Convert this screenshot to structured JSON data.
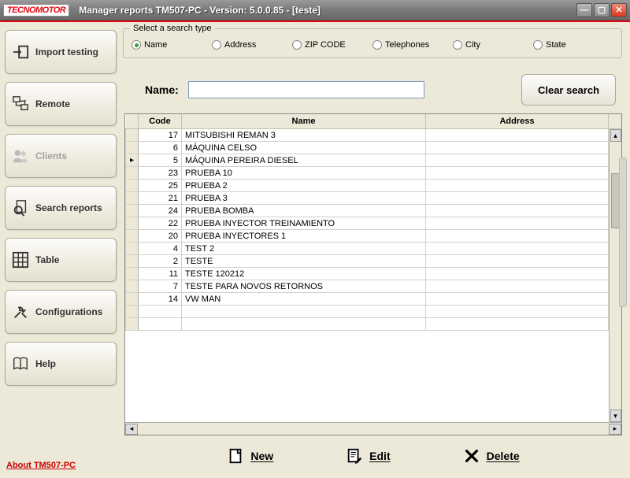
{
  "window": {
    "logo_text": "TECNOMOTOR",
    "title": "Manager reports TM507-PC - Version: 5.0.0.85 - [teste]"
  },
  "sidebar": {
    "items": [
      {
        "label": "Import testing",
        "icon": "arrow-into-box"
      },
      {
        "label": "Remote",
        "icon": "remote-pc"
      },
      {
        "label": "Clients",
        "icon": "people",
        "disabled": true
      },
      {
        "label": "Search reports",
        "icon": "search-reports"
      },
      {
        "label": "Table",
        "icon": "grid"
      },
      {
        "label": "Configurations",
        "icon": "tools"
      },
      {
        "label": "Help",
        "icon": "book"
      }
    ],
    "about_label": "About TM507-PC"
  },
  "search": {
    "group_label": "Select a search type",
    "options": [
      {
        "label": "Name",
        "checked": true
      },
      {
        "label": "Address",
        "checked": false
      },
      {
        "label": "ZIP CODE",
        "checked": false
      },
      {
        "label": "Telephones",
        "checked": false
      },
      {
        "label": "City",
        "checked": false
      },
      {
        "label": "State",
        "checked": false
      }
    ],
    "field_label": "Name:",
    "field_value": "",
    "clear_label": "Clear search"
  },
  "table": {
    "columns": [
      "Code",
      "Name",
      "Address"
    ],
    "rows": [
      {
        "code": 17,
        "name": "MITSUBISHI REMAN 3",
        "address": ""
      },
      {
        "code": 6,
        "name": "MÁQUINA CELSO",
        "address": ""
      },
      {
        "code": 5,
        "name": "MÁQUINA PEREIRA DIESEL",
        "address": "",
        "current": true
      },
      {
        "code": 23,
        "name": "PRUEBA 10",
        "address": ""
      },
      {
        "code": 25,
        "name": "PRUEBA 2",
        "address": ""
      },
      {
        "code": 21,
        "name": "PRUEBA 3",
        "address": ""
      },
      {
        "code": 24,
        "name": "PRUEBA BOMBA",
        "address": ""
      },
      {
        "code": 22,
        "name": "PRUEBA INYECTOR TREINAMIENTO",
        "address": ""
      },
      {
        "code": 20,
        "name": "PRUEBA INYECTORES 1",
        "address": ""
      },
      {
        "code": 4,
        "name": "TEST 2",
        "address": ""
      },
      {
        "code": 2,
        "name": "TESTE",
        "address": ""
      },
      {
        "code": 11,
        "name": "TESTE 120212",
        "address": ""
      },
      {
        "code": 7,
        "name": "TESTE PARA NOVOS RETORNOS",
        "address": ""
      },
      {
        "code": 14,
        "name": "VW MAN",
        "address": ""
      }
    ]
  },
  "actions": {
    "new": "New",
    "edit": "Edit",
    "delete": "Delete"
  },
  "colors": {
    "accent_red": "#e30613",
    "window_bg": "#ece9d8",
    "border": "#aca899"
  }
}
